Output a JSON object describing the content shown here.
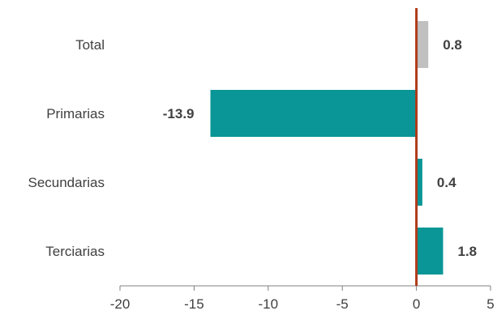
{
  "chart_data": {
    "type": "bar",
    "orientation": "horizontal",
    "categories": [
      "Total",
      "Primarias",
      "Secundarias",
      "Terciarias"
    ],
    "values": [
      0.8,
      -13.9,
      0.4,
      1.8
    ],
    "data_labels": [
      "0.8",
      "-13.9",
      "0.4",
      "1.8"
    ],
    "xlim": [
      -20,
      5
    ],
    "xticks": [
      -20,
      -15,
      -10,
      -5,
      0,
      5
    ],
    "xtick_labels": [
      "-20",
      "-15",
      "-10",
      "-5",
      "0",
      "5"
    ],
    "title": "",
    "xlabel": "",
    "ylabel": "",
    "grid": false,
    "legend": "none",
    "colors": {
      "highlight": "#c0c0c0",
      "bars": "#0a9696",
      "zero_line": "#b03a1a",
      "axis": "#808080"
    },
    "highlight_category": "Total"
  }
}
